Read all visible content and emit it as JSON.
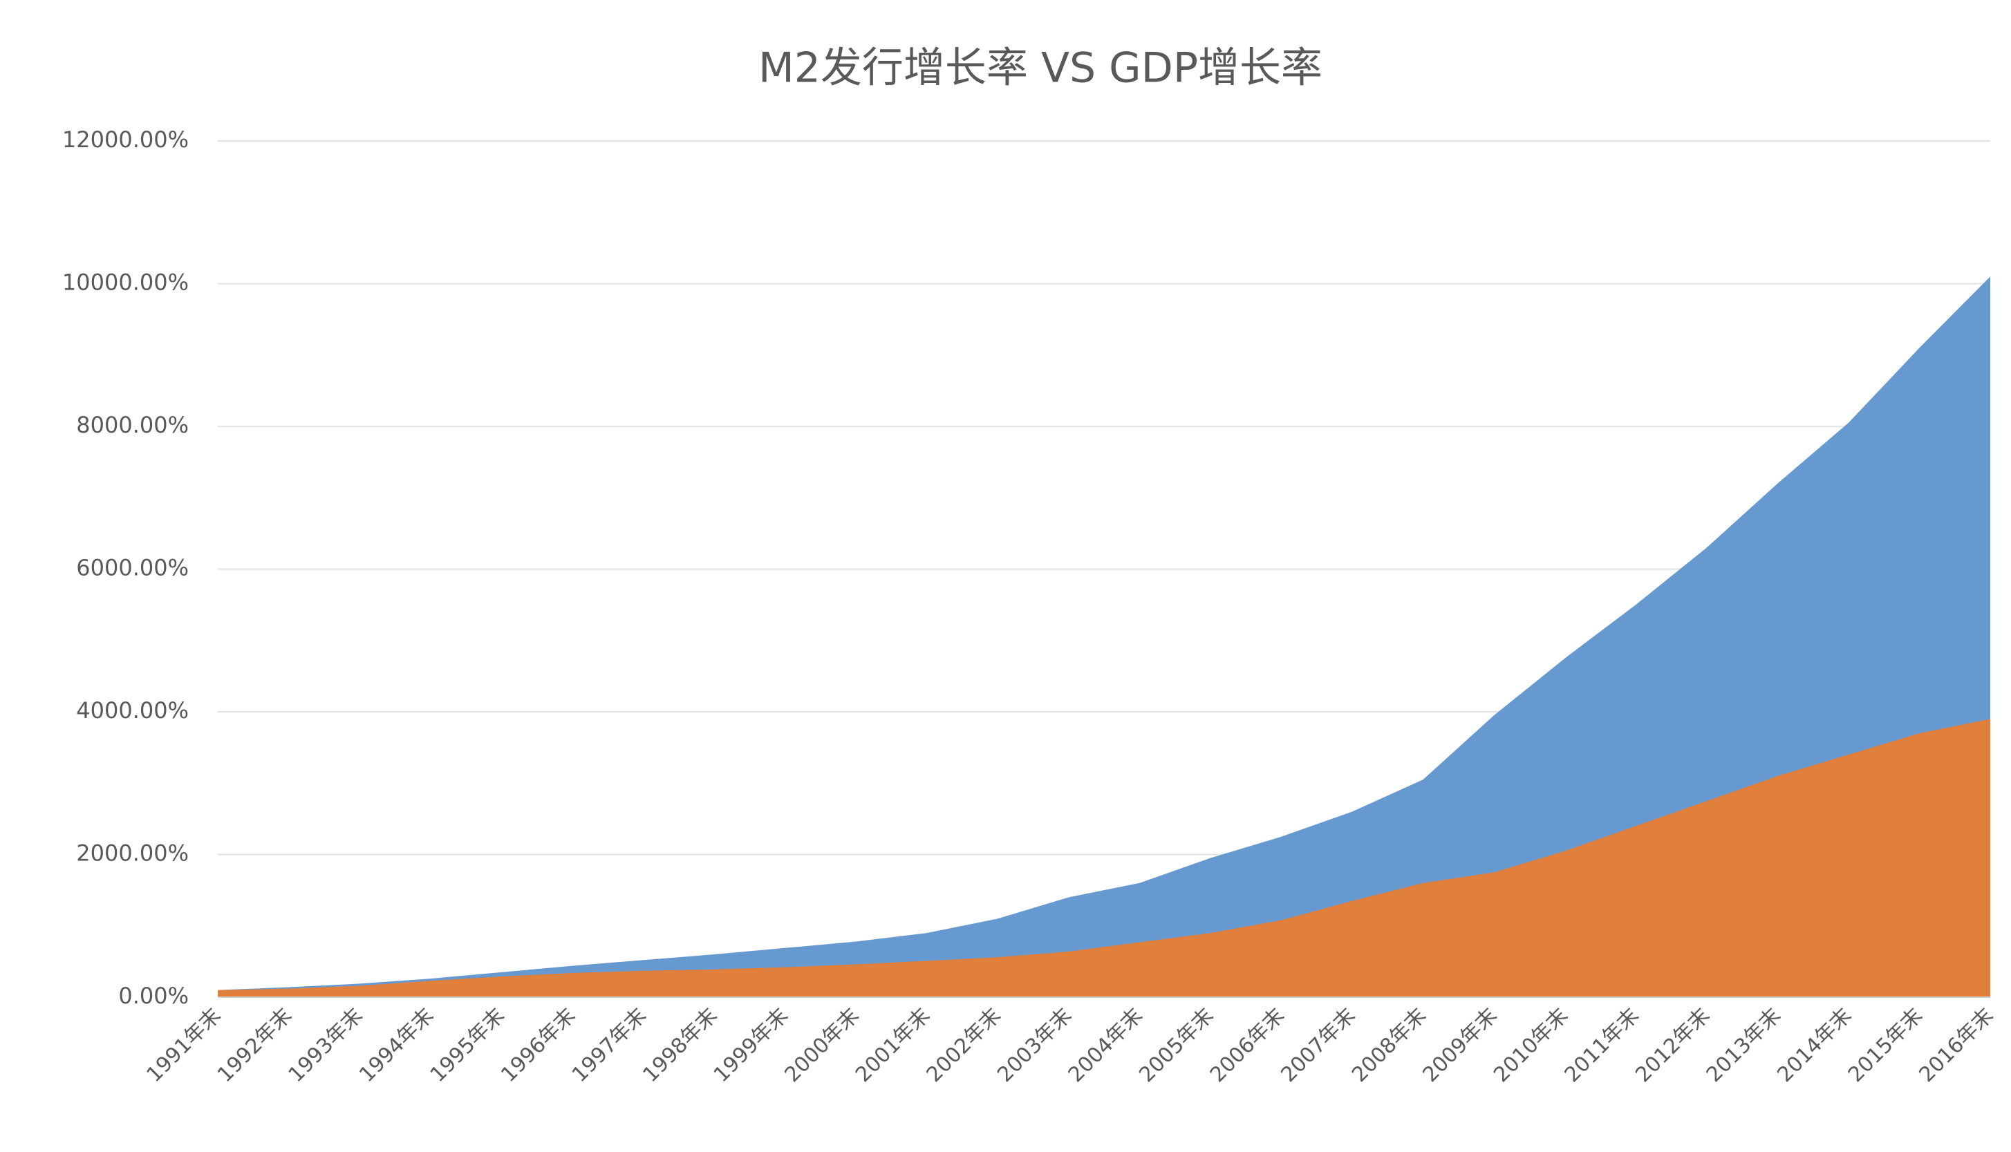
{
  "chart_data": {
    "type": "area",
    "title": "M2发行增长率 VS GDP增长率",
    "categories": [
      "1991年末",
      "1992年末",
      "1993年末",
      "1994年末",
      "1995年末",
      "1996年末",
      "1997年末",
      "1998年末",
      "1999年末",
      "2000年末",
      "2001年末",
      "2002年末",
      "2003年末",
      "2004年末",
      "2005年末",
      "2006年末",
      "2007年末",
      "2008年末",
      "2009年末",
      "2010年末",
      "2011年末",
      "2012年末",
      "2013年末",
      "2014年末",
      "2015年末",
      "2016年末"
    ],
    "series": [
      {
        "color": "#6699cf",
        "values": [
          100,
          140,
          190,
          260,
          350,
          440,
          520,
          600,
          690,
          780,
          900,
          1100,
          1400,
          1600,
          1950,
          2250,
          2600,
          3050,
          3950,
          4750,
          5500,
          6300,
          7200,
          8050,
          9100,
          10100
        ]
      },
      {
        "color": "#e0803c",
        "values": [
          100,
          120,
          160,
          230,
          290,
          340,
          370,
          390,
          420,
          460,
          510,
          560,
          640,
          770,
          900,
          1080,
          1350,
          1600,
          1750,
          2050,
          2400,
          2750,
          3100,
          3400,
          3700,
          3900
        ]
      }
    ],
    "ylim": [
      0,
      12000
    ],
    "yticks": [
      {
        "value": 0,
        "label": "0.00%"
      },
      {
        "value": 2000,
        "label": "2000.00%"
      },
      {
        "value": 4000,
        "label": "4000.00%"
      },
      {
        "value": 6000,
        "label": "6000.00%"
      },
      {
        "value": 8000,
        "label": "8000.00%"
      },
      {
        "value": 10000,
        "label": "10000.00%"
      },
      {
        "value": 12000,
        "label": "12000.00%"
      }
    ],
    "grid": true
  }
}
